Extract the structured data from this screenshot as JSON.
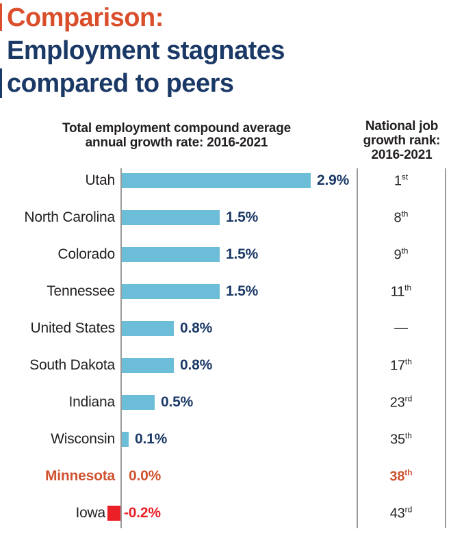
{
  "title": {
    "kicker": "Comparison:",
    "heading_line1": "Employment stagnates",
    "heading_line2": "compared to peers"
  },
  "headers": {
    "chart_line1": "Total employment compound average",
    "chart_line2": "annual growth rate: 2016-2021",
    "rank_line1": "National job",
    "rank_line2": "growth rank:",
    "rank_line3": "2016-2021"
  },
  "chart_data": {
    "type": "bar",
    "orientation": "horizontal",
    "title": "Total employment compound average annual growth rate: 2016-2021",
    "rank_column_title": "National job growth rank: 2016-2021",
    "unit": "%",
    "xlim": [
      -0.3,
      3.0
    ],
    "categories": [
      "Utah",
      "North Carolina",
      "Colorado",
      "Tennessee",
      "United States",
      "South Dakota",
      "Indiana",
      "Wisconsin",
      "Minnesota",
      "Iowa"
    ],
    "values": [
      2.9,
      1.5,
      1.5,
      1.5,
      0.8,
      0.8,
      0.5,
      0.1,
      0.0,
      -0.2
    ],
    "value_labels": [
      "2.9%",
      "1.5%",
      "1.5%",
      "1.5%",
      "0.8%",
      "0.8%",
      "0.5%",
      "0.1%",
      "0.0%",
      "-0.2%"
    ],
    "ranks": [
      "1st",
      "8th",
      "9th",
      "11th",
      "—",
      "17th",
      "23rd",
      "35th",
      "38th",
      "43rd"
    ],
    "highlight_accent": "Minnesota",
    "highlight_negative": "Iowa"
  },
  "colors": {
    "title_orange": "#DA4E2B",
    "highlight_orange": "#CF5330",
    "navy": "#1B3966",
    "bar_blue": "#6BBDD8",
    "negative_red": "#EB2027",
    "text_dark": "#231F20",
    "line_gray": "#9B9B9B"
  }
}
